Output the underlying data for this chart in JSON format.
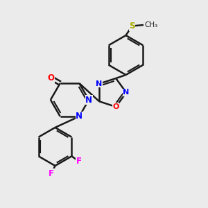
{
  "background_color": "#ebebeb",
  "bond_color": "#1a1a1a",
  "bond_lw": 1.8,
  "figsize": [
    3.0,
    3.0
  ],
  "dpi": 100,
  "atoms": {
    "N": "#0000ff",
    "O": "#ff0000",
    "F": "#ff00ff",
    "S": "#aaaa00",
    "C": "#1a1a1a"
  },
  "xlim": [
    0.0,
    1.0
  ],
  "ylim": [
    0.0,
    1.0
  ]
}
